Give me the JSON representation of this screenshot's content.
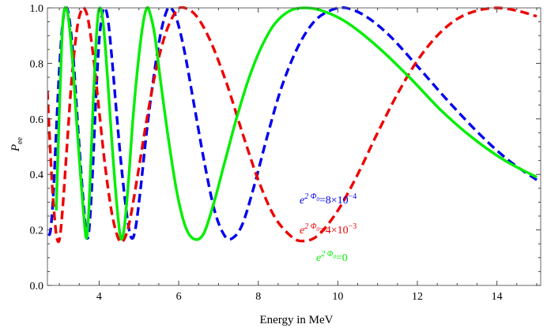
{
  "chart_data": {
    "type": "line",
    "title": "",
    "xlabel": "Energy in MeV",
    "ylabel": "P_ee",
    "ylabel_main": "P",
    "ylabel_sub": "ee",
    "xlim": [
      2.7,
      15.1
    ],
    "ylim": [
      0.0,
      1.0
    ],
    "xticks": [
      4,
      6,
      8,
      10,
      12,
      14
    ],
    "xtick_labels": [
      "4",
      "6",
      "8",
      "10",
      "12",
      "14"
    ],
    "yticks": [
      0.0,
      0.2,
      0.4,
      0.6,
      0.8,
      1.0
    ],
    "ytick_labels": [
      "0.0",
      "0.2",
      "0.4",
      "0.6",
      "0.8",
      "1.0"
    ],
    "grid": false,
    "legend_position": "center-right",
    "series": [
      {
        "name": "e^{2Φ0}=0",
        "color": "#00ee00",
        "dash": "solid",
        "legend_base": "e",
        "legend_exp": "2 Φ",
        "legend_exp_sub": "0",
        "legend_value": "=0",
        "points": [
          [
            2.92,
            0.27
          ],
          [
            2.97,
            0.5
          ],
          [
            3.03,
            0.75
          ],
          [
            3.08,
            0.93
          ],
          [
            3.14,
            1.0
          ],
          [
            3.22,
            0.97
          ],
          [
            3.32,
            0.83
          ],
          [
            3.42,
            0.62
          ],
          [
            3.52,
            0.42
          ],
          [
            3.62,
            0.24
          ],
          [
            3.68,
            0.17
          ],
          [
            3.73,
            0.24
          ],
          [
            3.78,
            0.4
          ],
          [
            3.85,
            0.66
          ],
          [
            3.92,
            0.87
          ],
          [
            3.97,
            0.97
          ],
          [
            4.02,
            1.0
          ],
          [
            4.08,
            0.97
          ],
          [
            4.15,
            0.87
          ],
          [
            4.22,
            0.73
          ],
          [
            4.32,
            0.52
          ],
          [
            4.42,
            0.33
          ],
          [
            4.52,
            0.19
          ],
          [
            4.58,
            0.17
          ],
          [
            4.65,
            0.23
          ],
          [
            4.75,
            0.4
          ],
          [
            4.85,
            0.6
          ],
          [
            4.98,
            0.8
          ],
          [
            5.1,
            0.94
          ],
          [
            5.2,
            1.0
          ],
          [
            5.28,
            0.98
          ],
          [
            5.4,
            0.9
          ],
          [
            5.55,
            0.73
          ],
          [
            5.75,
            0.52
          ],
          [
            5.95,
            0.34
          ],
          [
            6.15,
            0.22
          ],
          [
            6.35,
            0.17
          ],
          [
            6.6,
            0.18
          ],
          [
            6.85,
            0.28
          ],
          [
            7.15,
            0.44
          ],
          [
            7.45,
            0.6
          ],
          [
            7.75,
            0.74
          ],
          [
            8.05,
            0.85
          ],
          [
            8.4,
            0.94
          ],
          [
            8.8,
            0.99
          ],
          [
            9.2,
            1.0
          ],
          [
            9.6,
            0.99
          ],
          [
            10.2,
            0.95
          ],
          [
            11.0,
            0.86
          ],
          [
            11.8,
            0.75
          ],
          [
            12.6,
            0.63
          ],
          [
            13.4,
            0.53
          ],
          [
            14.2,
            0.45
          ],
          [
            15.0,
            0.39
          ]
        ]
      },
      {
        "name": "e^{2Φ0}=8×10^-4",
        "color": "#0000ee",
        "dash": "dashed",
        "legend_base": "e",
        "legend_exp": "2 Φ",
        "legend_exp_sub": "0",
        "legend_value": "=8×10",
        "legend_value_exp": "−4",
        "points": [
          [
            2.72,
            0.18
          ],
          [
            2.78,
            0.2
          ],
          [
            2.85,
            0.33
          ],
          [
            2.92,
            0.55
          ],
          [
            3.0,
            0.78
          ],
          [
            3.08,
            0.94
          ],
          [
            3.16,
            1.0
          ],
          [
            3.24,
            0.97
          ],
          [
            3.34,
            0.84
          ],
          [
            3.44,
            0.63
          ],
          [
            3.54,
            0.42
          ],
          [
            3.64,
            0.24
          ],
          [
            3.7,
            0.17
          ],
          [
            3.76,
            0.22
          ],
          [
            3.84,
            0.42
          ],
          [
            3.92,
            0.68
          ],
          [
            4.0,
            0.88
          ],
          [
            4.08,
            0.98
          ],
          [
            4.14,
            1.0
          ],
          [
            4.22,
            0.96
          ],
          [
            4.32,
            0.82
          ],
          [
            4.45,
            0.6
          ],
          [
            4.58,
            0.4
          ],
          [
            4.72,
            0.23
          ],
          [
            4.82,
            0.17
          ],
          [
            4.92,
            0.21
          ],
          [
            5.05,
            0.36
          ],
          [
            5.2,
            0.56
          ],
          [
            5.38,
            0.76
          ],
          [
            5.55,
            0.91
          ],
          [
            5.7,
            0.99
          ],
          [
            5.8,
            1.0
          ],
          [
            5.95,
            0.96
          ],
          [
            6.15,
            0.84
          ],
          [
            6.4,
            0.64
          ],
          [
            6.65,
            0.44
          ],
          [
            6.9,
            0.27
          ],
          [
            7.15,
            0.18
          ],
          [
            7.35,
            0.17
          ],
          [
            7.6,
            0.22
          ],
          [
            7.9,
            0.36
          ],
          [
            8.25,
            0.55
          ],
          [
            8.6,
            0.72
          ],
          [
            9.0,
            0.86
          ],
          [
            9.4,
            0.95
          ],
          [
            9.8,
            0.99
          ],
          [
            10.2,
            1.0
          ],
          [
            10.7,
            0.97
          ],
          [
            11.3,
            0.9
          ],
          [
            12.0,
            0.79
          ],
          [
            12.8,
            0.66
          ],
          [
            13.6,
            0.54
          ],
          [
            14.3,
            0.45
          ],
          [
            15.0,
            0.38
          ]
        ]
      },
      {
        "name": "e^{2Φ0}=4×10^-3",
        "color": "#ee0000",
        "dash": "dashed",
        "legend_base": "e",
        "legend_exp": "2 Φ",
        "legend_exp_sub": "0",
        "legend_value": "=4×10",
        "legend_value_exp": "−3",
        "points": [
          [
            2.7,
            0.7
          ],
          [
            2.75,
            0.55
          ],
          [
            2.82,
            0.36
          ],
          [
            2.9,
            0.21
          ],
          [
            2.96,
            0.16
          ],
          [
            3.02,
            0.18
          ],
          [
            3.1,
            0.31
          ],
          [
            3.2,
            0.52
          ],
          [
            3.32,
            0.76
          ],
          [
            3.45,
            0.93
          ],
          [
            3.55,
            0.99
          ],
          [
            3.62,
            1.0
          ],
          [
            3.72,
            0.96
          ],
          [
            3.85,
            0.83
          ],
          [
            4.0,
            0.63
          ],
          [
            4.15,
            0.43
          ],
          [
            4.32,
            0.26
          ],
          [
            4.48,
            0.17
          ],
          [
            4.6,
            0.16
          ],
          [
            4.75,
            0.22
          ],
          [
            4.95,
            0.38
          ],
          [
            5.2,
            0.6
          ],
          [
            5.45,
            0.79
          ],
          [
            5.7,
            0.92
          ],
          [
            5.95,
            0.99
          ],
          [
            6.15,
            1.0
          ],
          [
            6.45,
            0.97
          ],
          [
            6.8,
            0.88
          ],
          [
            7.2,
            0.73
          ],
          [
            7.6,
            0.55
          ],
          [
            8.0,
            0.38
          ],
          [
            8.4,
            0.25
          ],
          [
            8.8,
            0.18
          ],
          [
            9.1,
            0.16
          ],
          [
            9.5,
            0.18
          ],
          [
            10.0,
            0.27
          ],
          [
            10.5,
            0.4
          ],
          [
            11.0,
            0.55
          ],
          [
            11.5,
            0.69
          ],
          [
            12.0,
            0.81
          ],
          [
            12.5,
            0.9
          ],
          [
            13.0,
            0.96
          ],
          [
            13.5,
            0.99
          ],
          [
            14.0,
            1.0
          ],
          [
            14.5,
            0.99
          ],
          [
            15.0,
            0.97
          ]
        ]
      }
    ]
  }
}
